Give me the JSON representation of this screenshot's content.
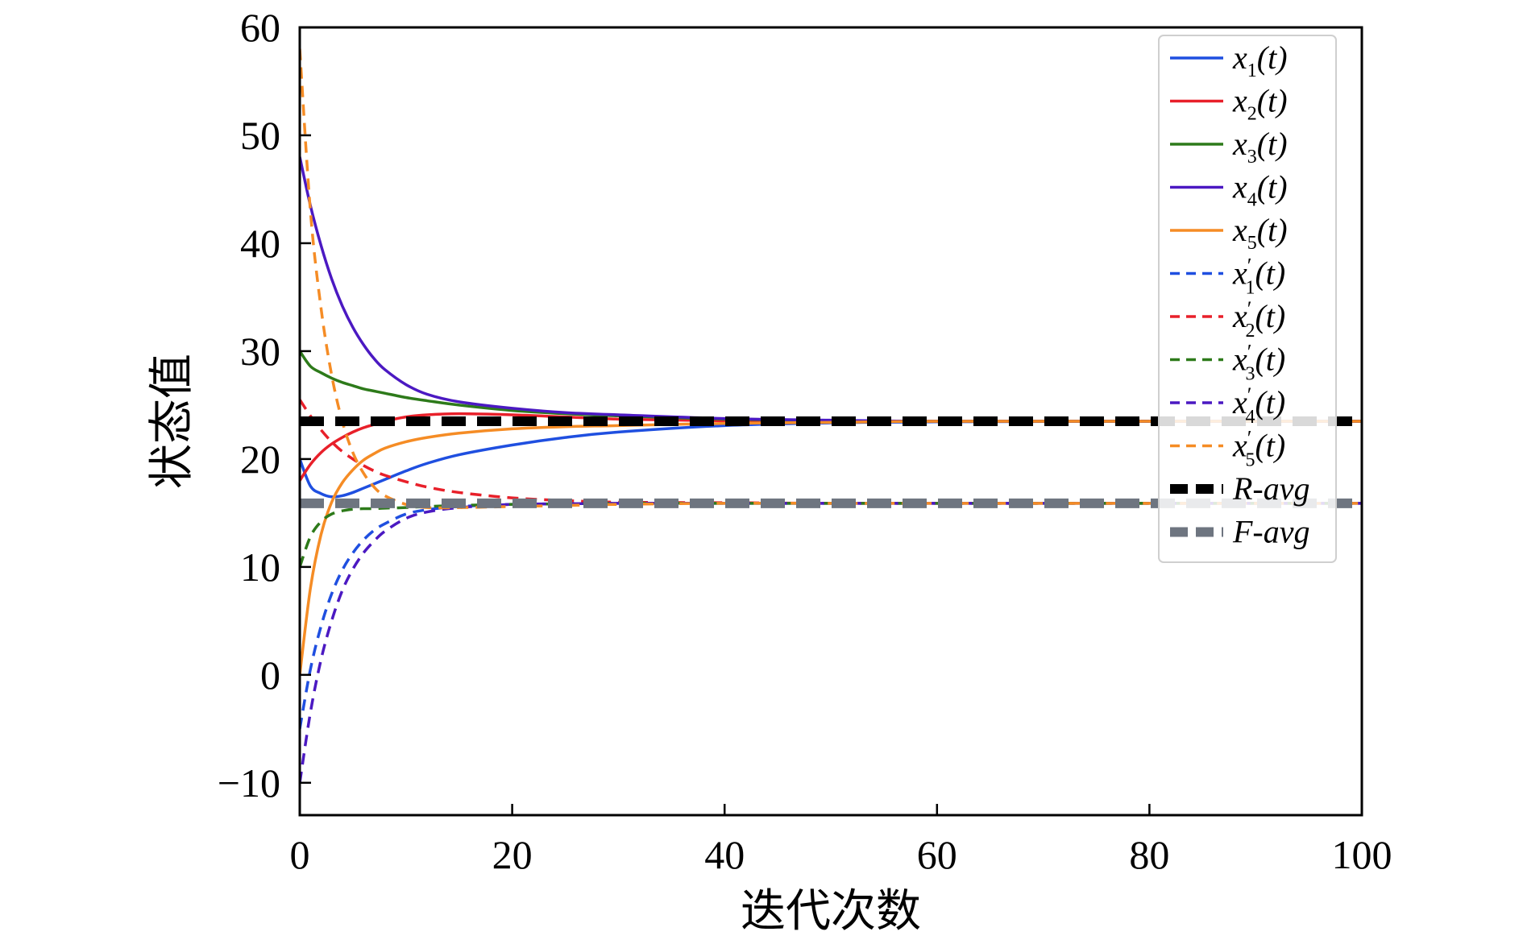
{
  "chart_data": {
    "type": "line",
    "title": "",
    "xlabel": "迭代次数",
    "ylabel": "状态值",
    "xlim": [
      0,
      100
    ],
    "ylim": [
      -13,
      60
    ],
    "xticks": [
      "0",
      "20",
      "40",
      "60",
      "80",
      "100"
    ],
    "yticks": [
      "−10",
      "0",
      "10",
      "20",
      "30",
      "40",
      "50",
      "60"
    ],
    "grid": false,
    "legend_position": "top-right",
    "x": [
      0,
      1,
      2,
      3,
      4,
      5,
      6,
      7,
      8,
      10,
      12,
      15,
      20,
      25,
      30,
      40,
      50,
      60,
      80,
      100
    ],
    "series": [
      {
        "name": "x1(t)",
        "legend_base": "x",
        "legend_sub": "1",
        "legend_prime": false,
        "legend_suffix": "(t)",
        "color": "#1f4fe0",
        "dash": "solid",
        "values": [
          20,
          17.5,
          16.8,
          16.5,
          16.6,
          16.9,
          17.3,
          17.7,
          18.1,
          18.9,
          19.6,
          20.4,
          21.3,
          22.0,
          22.5,
          23.1,
          23.35,
          23.45,
          23.5,
          23.5
        ]
      },
      {
        "name": "x2(t)",
        "legend_base": "x",
        "legend_sub": "2",
        "legend_prime": false,
        "legend_suffix": "(t)",
        "color": "#e8202a",
        "dash": "solid",
        "values": [
          18,
          19.5,
          20.6,
          21.4,
          22.0,
          22.5,
          22.9,
          23.2,
          23.5,
          23.9,
          24.1,
          24.2,
          24.1,
          23.9,
          23.7,
          23.55,
          23.5,
          23.5,
          23.5,
          23.5
        ]
      },
      {
        "name": "x3(t)",
        "legend_base": "x",
        "legend_sub": "3",
        "legend_prime": false,
        "legend_suffix": "(t)",
        "color": "#2d7a1a",
        "dash": "solid",
        "values": [
          30,
          28.6,
          28.0,
          27.5,
          27.1,
          26.8,
          26.5,
          26.3,
          26.1,
          25.7,
          25.4,
          25.0,
          24.5,
          24.2,
          24.0,
          23.7,
          23.55,
          23.5,
          23.5,
          23.5
        ]
      },
      {
        "name": "x4(t)",
        "legend_base": "x",
        "legend_sub": "4",
        "legend_prime": false,
        "legend_suffix": "(t)",
        "color": "#4b19c2",
        "dash": "solid",
        "values": [
          48,
          43.5,
          39.8,
          36.7,
          34.2,
          32.2,
          30.6,
          29.3,
          28.3,
          26.9,
          26.0,
          25.3,
          24.7,
          24.3,
          24.1,
          23.75,
          23.6,
          23.5,
          23.5,
          23.5
        ]
      },
      {
        "name": "x5(t)",
        "legend_base": "x",
        "legend_sub": "5",
        "legend_prime": false,
        "legend_suffix": "(t)",
        "color": "#f58c25",
        "dash": "solid",
        "values": [
          0,
          8.0,
          13.0,
          16.0,
          17.8,
          19.0,
          19.9,
          20.5,
          21.0,
          21.6,
          22.0,
          22.4,
          22.8,
          23.0,
          23.1,
          23.3,
          23.4,
          23.5,
          23.5,
          23.5
        ]
      },
      {
        "name": "x1'(t)",
        "legend_base": "x",
        "legend_sub": "1",
        "legend_prime": true,
        "legend_suffix": "(t)",
        "color": "#1f4fe0",
        "dash": "dashed",
        "values": [
          -5,
          0.5,
          4.5,
          7.5,
          9.7,
          11.3,
          12.5,
          13.4,
          14.0,
          14.9,
          15.3,
          15.6,
          15.8,
          15.85,
          15.9,
          15.9,
          15.9,
          15.9,
          15.9,
          15.9
        ]
      },
      {
        "name": "x2'(t)",
        "legend_base": "x",
        "legend_sub": "2",
        "legend_prime": true,
        "legend_suffix": "(t)",
        "color": "#e8202a",
        "dash": "dashed",
        "values": [
          25.5,
          24.0,
          22.7,
          21.6,
          20.7,
          20.0,
          19.4,
          18.9,
          18.5,
          17.9,
          17.4,
          16.9,
          16.4,
          16.15,
          16.0,
          15.95,
          15.9,
          15.9,
          15.9,
          15.9
        ]
      },
      {
        "name": "x3'(t)",
        "legend_base": "x",
        "legend_sub": "3",
        "legend_prime": true,
        "legend_suffix": "(t)",
        "color": "#2d7a1a",
        "dash": "dashed",
        "values": [
          10,
          12.8,
          14.2,
          14.9,
          15.2,
          15.35,
          15.4,
          15.4,
          15.45,
          15.5,
          15.6,
          15.7,
          15.8,
          15.85,
          15.9,
          15.9,
          15.9,
          15.9,
          15.9,
          15.9
        ]
      },
      {
        "name": "x4'(t)",
        "legend_base": "x",
        "legend_sub": "4",
        "legend_prime": true,
        "legend_suffix": "(t)",
        "color": "#4b19c2",
        "dash": "dashed",
        "values": [
          -10,
          -3.5,
          1.4,
          5.0,
          7.8,
          9.8,
          11.3,
          12.4,
          13.3,
          14.5,
          15.1,
          15.5,
          15.8,
          15.85,
          15.9,
          15.9,
          15.9,
          15.9,
          15.9,
          15.9
        ]
      },
      {
        "name": "x5'(t)",
        "legend_base": "x",
        "legend_sub": "5",
        "legend_prime": true,
        "legend_suffix": "(t)",
        "color": "#f58c25",
        "dash": "dashed",
        "values": [
          58,
          43.0,
          34.0,
          27.8,
          23.5,
          20.6,
          18.7,
          17.4,
          16.6,
          15.8,
          15.5,
          15.5,
          15.6,
          15.7,
          15.8,
          15.9,
          15.9,
          15.9,
          15.9,
          15.9
        ]
      },
      {
        "name": "R-avg",
        "legend_text": "R-avg",
        "color": "#000000",
        "dash": "thick-dashed",
        "constant": 23.5
      },
      {
        "name": "F-avg",
        "legend_text": "F-avg",
        "color": "#6e7580",
        "dash": "thick-dashed",
        "constant": 15.9
      }
    ]
  }
}
